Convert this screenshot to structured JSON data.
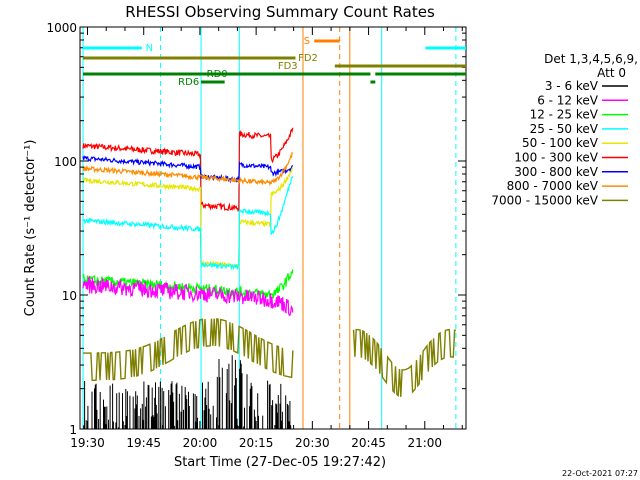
{
  "chart_data": {
    "type": "line",
    "title": "RHESSI Observing Summary Count Rates",
    "xlabel": "Start Time (27-Dec-05 19:27:42)",
    "ylabel": "Count Rate (s⁻¹ detector⁻¹)",
    "ylog": true,
    "ylim": [
      1,
      1000
    ],
    "xlim": [
      "19:28",
      "21:11"
    ],
    "xticks": [
      "19:30",
      "19:45",
      "20:00",
      "20:15",
      "20:30",
      "20:45",
      "21:00"
    ],
    "yticks": [
      "1",
      "10",
      "100",
      "1000"
    ],
    "legend": {
      "position": "right",
      "header_line1": "Det 1,3,4,5,6,9,",
      "header_line2": "Att 0"
    },
    "series": [
      {
        "name": "3 - 6 keV",
        "color": "#000000"
      },
      {
        "name": "6 - 12 keV",
        "color": "#ff00ff"
      },
      {
        "name": "12 - 25 keV",
        "color": "#00ff00"
      },
      {
        "name": "25 - 50 keV",
        "color": "#00ffff"
      },
      {
        "name": "50 - 100 keV",
        "color": "#e6e600"
      },
      {
        "name": "100 - 300 keV",
        "color": "#ff0000"
      },
      {
        "name": "300 - 800 keV",
        "color": "#0000ff"
      },
      {
        "name": "800 - 7000 keV",
        "color": "#ff8c00"
      },
      {
        "name": "7000 - 15000 keV",
        "color": "#808000"
      }
    ],
    "flag_bars": [
      {
        "label": "N",
        "color": "#00ffff"
      },
      {
        "label": "S",
        "color": "#ff8000"
      },
      {
        "label": "FD2",
        "color": "#808000"
      },
      {
        "label": "FD3",
        "color": "#808000"
      },
      {
        "label": "RD0",
        "color": "#008000"
      },
      {
        "label": "RD6",
        "color": "#008000"
      }
    ],
    "timestamp": "22-Oct-2021 07:27"
  }
}
